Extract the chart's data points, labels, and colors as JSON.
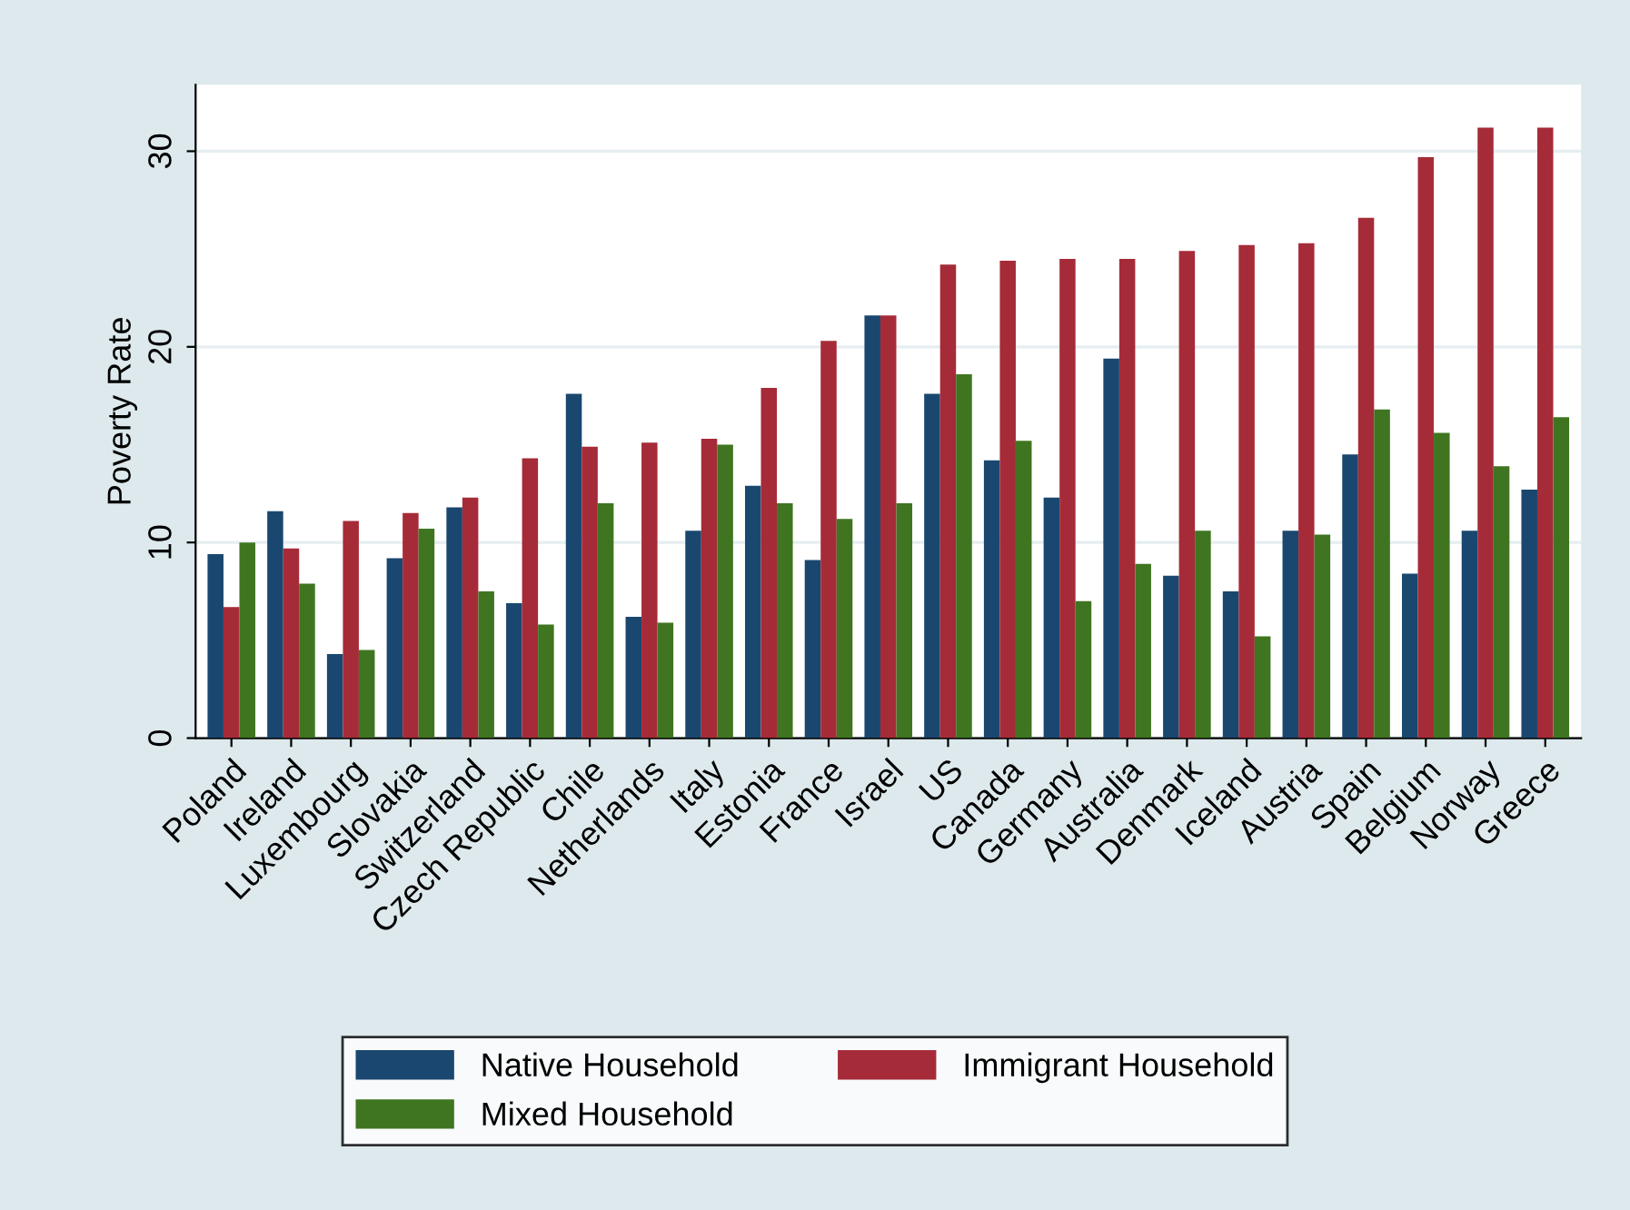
{
  "chart_data": {
    "type": "bar",
    "ylabel": "Poverty Rate",
    "categories": [
      "Poland",
      "Ireland",
      "Luxembourg",
      "Slovakia",
      "Switzerland",
      "Czech Republic",
      "Chile",
      "Netherlands",
      "Italy",
      "Estonia",
      "France",
      "Israel",
      "US",
      "Canada",
      "Germany",
      "Australia",
      "Denmark",
      "Iceland",
      "Austria",
      "Spain",
      "Belgium",
      "Norway",
      "Greece"
    ],
    "series": [
      {
        "name": "Native Household",
        "color": "#1a476f",
        "values": [
          9.4,
          11.6,
          4.3,
          9.2,
          11.8,
          6.9,
          17.6,
          6.2,
          10.6,
          12.9,
          9.1,
          21.6,
          17.6,
          14.2,
          12.3,
          19.4,
          8.3,
          7.5,
          10.6,
          14.5,
          8.4,
          10.6,
          12.7
        ]
      },
      {
        "name": "Immigrant Household",
        "color": "#a62b38",
        "values": [
          6.7,
          9.7,
          11.1,
          11.5,
          12.3,
          14.3,
          14.9,
          15.1,
          15.3,
          17.9,
          20.3,
          21.6,
          24.2,
          24.4,
          24.5,
          24.5,
          24.9,
          25.2,
          25.3,
          26.6,
          29.7,
          31.2,
          31.2
        ]
      },
      {
        "name": "Mixed Household",
        "color": "#3f7520",
        "values": [
          10.0,
          7.9,
          4.5,
          10.7,
          7.5,
          5.8,
          12.0,
          5.9,
          15.0,
          12.0,
          11.2,
          12.0,
          18.6,
          15.2,
          7.0,
          8.9,
          10.6,
          5.2,
          10.4,
          16.8,
          15.6,
          13.9,
          16.4
        ]
      }
    ],
    "ylim": [
      0,
      33.4
    ],
    "yticks": [
      0,
      10,
      20,
      30
    ],
    "grid": "y",
    "legend": "bottom"
  }
}
